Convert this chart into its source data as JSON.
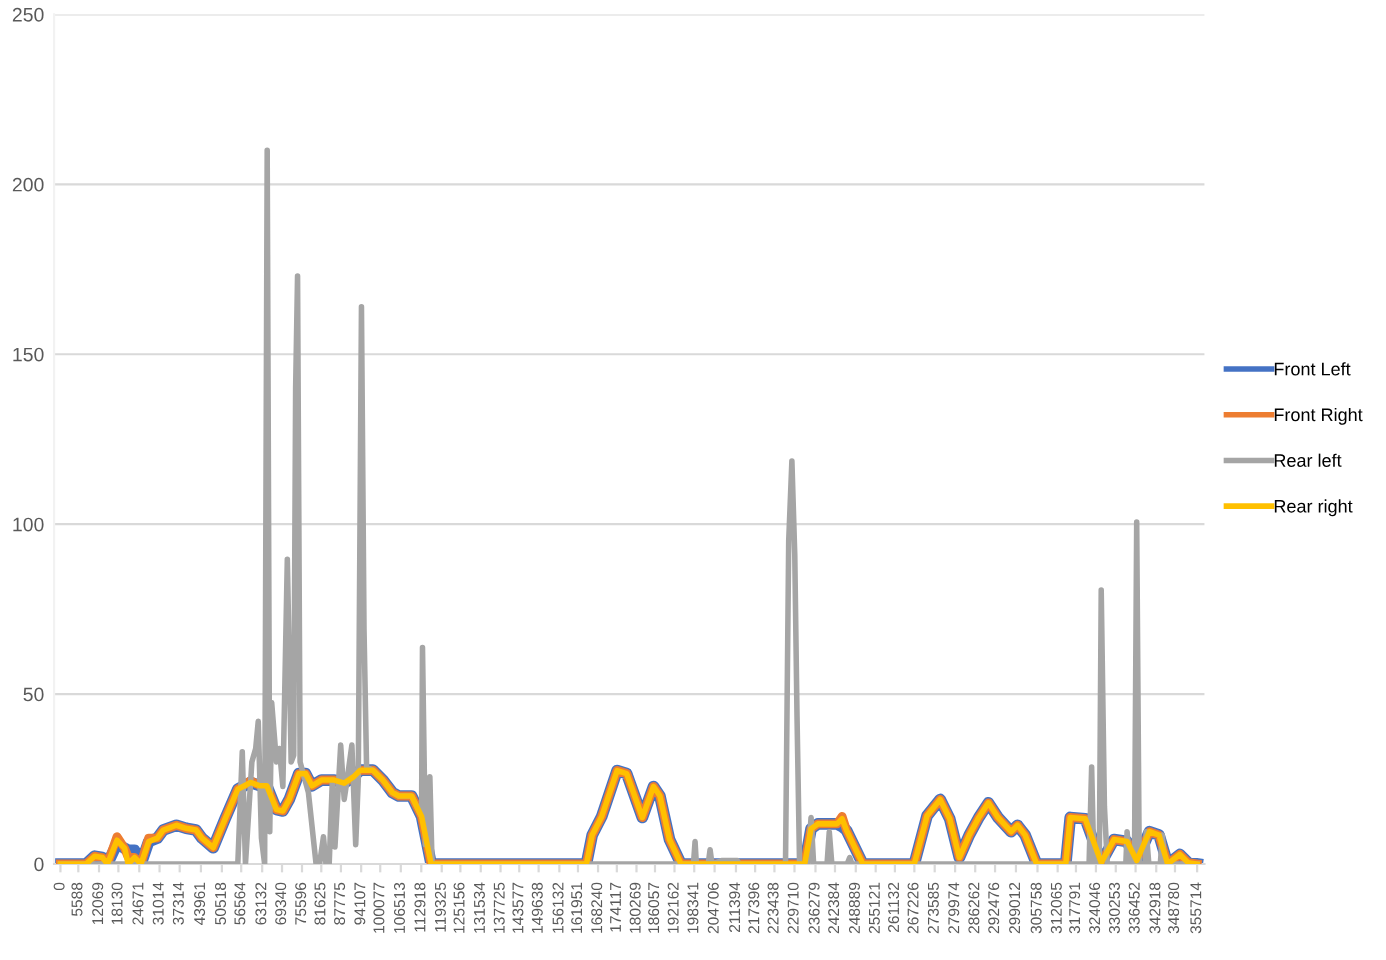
{
  "chart_data": {
    "type": "line",
    "x": [
      0,
      8000,
      10700,
      13100,
      14700,
      17700,
      20100,
      21200,
      23200,
      25200,
      27600,
      30300,
      32200,
      36300,
      39300,
      42400,
      44300,
      47800,
      51400,
      55500,
      59500,
      62500,
      64600,
      67600,
      69600,
      71600,
      74600,
      76700,
      78700,
      81700,
      85700,
      88800,
      91800,
      93800,
      97800,
      100900,
      103900,
      105900,
      109900,
      113000,
      116000,
      164600,
      166400,
      169400,
      174200,
      177200,
      182100,
      185600,
      187600,
      190600,
      194200,
      232900,
      234900,
      237000,
      243000,
      244600,
      246000,
      251100,
      267200,
      271200,
      275300,
      278300,
      281300,
      284400,
      287400,
      290400,
      293400,
      297500,
      299500,
      301900,
      305500,
      314600,
      316000,
      320700,
      325700,
      329700,
      333800,
      336800,
      340800,
      343800,
      346500,
      350300,
      352900,
      355714
    ],
    "series": [
      {
        "name": "Front Left",
        "color": "#4472c4",
        "values": [
          0,
          0,
          2.3,
          1.9,
          0,
          6,
          4.6,
          4,
          4,
          0,
          6.6,
          7.6,
          10,
          11.4,
          10.5,
          10,
          7.6,
          4.8,
          13,
          22,
          24,
          23,
          23,
          16,
          15.6,
          19,
          26.6,
          26.6,
          23,
          24.7,
          24.7,
          23.8,
          25.7,
          27.6,
          27.6,
          24.7,
          21,
          20,
          20,
          14,
          0,
          0,
          8.5,
          14,
          27.5,
          26.6,
          13.7,
          22.8,
          20,
          7.2,
          0,
          0,
          10.4,
          11.8,
          11.8,
          11,
          9.9,
          0,
          0,
          14.2,
          19,
          13.3,
          1.9,
          8.5,
          13.7,
          18,
          13.7,
          9.5,
          11.4,
          8.5,
          0,
          0,
          13.7,
          13.3,
          0.4,
          7.2,
          6.6,
          1,
          9.5,
          8.5,
          0,
          2.8,
          0.4,
          0
        ]
      },
      {
        "name": "Front Right",
        "color": "#ed7d31",
        "values": [
          0,
          0,
          2.3,
          1.9,
          0,
          8,
          4.6,
          2,
          1.9,
          0,
          7.6,
          7.6,
          10,
          11.4,
          10.5,
          10,
          7.6,
          4.8,
          13,
          22,
          24.5,
          23,
          23,
          16,
          15.6,
          19,
          26.6,
          26.6,
          23,
          24.7,
          24.7,
          23.8,
          25.7,
          27.6,
          27.6,
          24.7,
          21,
          20,
          20,
          14,
          0,
          0,
          8.5,
          14,
          27.5,
          26.6,
          13.7,
          22.8,
          20,
          7.2,
          0,
          0,
          10.4,
          11.8,
          11.8,
          14,
          9.9,
          0,
          0,
          14.2,
          19,
          13.3,
          1.9,
          8.5,
          13.7,
          18,
          13.7,
          9.5,
          11.4,
          8.5,
          0,
          0,
          13.7,
          13.3,
          0.4,
          7.2,
          6.6,
          1,
          9.5,
          8.5,
          0,
          2.8,
          0.4,
          0
        ]
      },
      {
        "name": "Rear left",
        "color": "#a5a5a5",
        "x": [
          0,
          55500,
          56900,
          57900,
          59900,
          61100,
          61900,
          62900,
          63900,
          64700,
          65500,
          66100,
          67600,
          68500,
          69600,
          71000,
          72200,
          73000,
          73600,
          74200,
          75000,
          77600,
          80000,
          81100,
          82300,
          83100,
          84100,
          85100,
          85900,
          87700,
          88800,
          89700,
          91200,
          92400,
          93200,
          94200,
          95000,
          95800,
          97800,
          100900,
          103900,
          105900,
          109900,
          113000,
          113300,
          114200,
          115600,
          116300,
          198100,
          198600,
          199000,
          202700,
          203300,
          203900,
          206900,
          211800,
          212400,
          226900,
          227900,
          228900,
          229800,
          230500,
          231300,
          233900,
          234900,
          235700,
          239900,
          240600,
          241400,
          246200,
          247000,
          247700,
          321900,
          322700,
          323400,
          325100,
          325700,
          326700,
          327600,
          333400,
          333800,
          334600,
          336100,
          336800,
          337600,
          339400,
          339800,
          340600,
          344200,
          344800,
          345700,
          355714
        ],
        "values": [
          0,
          0,
          33,
          0,
          30,
          34,
          42,
          7.6,
          0,
          210,
          9.5,
          47.5,
          30,
          34,
          22.8,
          89.7,
          30,
          32,
          140,
          173,
          30,
          21,
          0,
          0,
          8,
          0,
          0,
          24.7,
          5,
          35,
          19,
          24.7,
          35,
          5.7,
          24.7,
          164,
          69,
          28.5,
          27.6,
          24.7,
          21,
          20,
          20,
          14,
          63.7,
          5.7,
          25.7,
          0,
          0,
          6.6,
          0,
          0,
          4.2,
          0,
          1,
          1,
          0,
          0,
          95,
          118.6,
          91,
          43.6,
          0,
          0,
          13.7,
          0,
          0,
          9.5,
          0,
          0,
          1.9,
          0,
          0,
          28.5,
          0,
          0,
          80.6,
          17,
          0,
          0,
          9.5,
          0,
          0,
          100.6,
          0,
          0,
          9.5,
          0,
          0,
          8.5,
          0,
          0
        ]
      },
      {
        "name": "Rear right",
        "color": "#ffc000",
        "values": [
          0,
          0,
          2.3,
          1.9,
          0,
          7,
          4.6,
          0,
          1.9,
          0,
          6.6,
          7.6,
          10,
          11.4,
          10.5,
          10,
          7.6,
          4.8,
          13,
          22,
          24,
          23,
          23,
          16,
          15.6,
          19,
          26.6,
          26.6,
          23,
          24.7,
          24.7,
          23.8,
          25.7,
          27.6,
          27.6,
          24.7,
          21,
          20,
          20,
          14,
          0,
          0,
          8.5,
          14,
          27.5,
          26.6,
          13.7,
          22.8,
          20,
          7.2,
          0,
          0,
          10.4,
          11.8,
          11.8,
          13.3,
          9.9,
          0,
          0,
          14.2,
          19,
          13.3,
          1.9,
          8.5,
          13.7,
          18,
          13.7,
          9.5,
          11.4,
          8.5,
          0,
          0,
          13.7,
          13.3,
          0.4,
          7.2,
          6.6,
          1,
          9.5,
          8.5,
          0,
          2.8,
          0.4,
          0
        ]
      }
    ],
    "xlim": [
      -2000,
      358000
    ],
    "xticks": [
      0,
      5588,
      12069,
      18130,
      24671,
      31014,
      37314,
      43961,
      50518,
      56564,
      63132,
      69340,
      75596,
      81625,
      87775,
      94107,
      100077,
      106513,
      112918,
      119325,
      125156,
      131534,
      137725,
      143577,
      149638,
      156132,
      161951,
      168240,
      174117,
      180269,
      186057,
      192162,
      198341,
      204706,
      211394,
      217396,
      223438,
      229710,
      236279,
      242384,
      248889,
      255121,
      261132,
      267226,
      273585,
      279974,
      286262,
      292476,
      299012,
      305758,
      312065,
      317791,
      324046,
      330253,
      336452,
      342918,
      348780,
      355714
    ],
    "ylim": [
      0,
      250
    ],
    "yticks": [
      0,
      50,
      100,
      150,
      200,
      250
    ],
    "grid": "y",
    "legend": "right",
    "marker": "none",
    "line_style": "solid"
  }
}
